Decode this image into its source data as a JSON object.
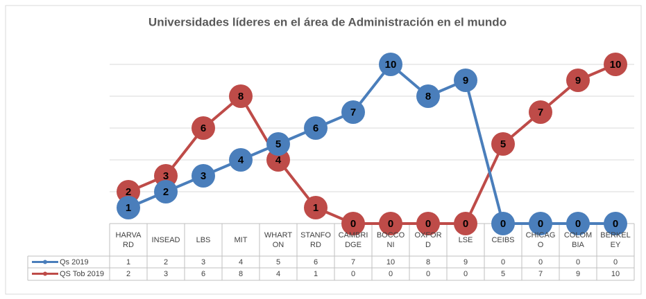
{
  "chart_data": {
    "type": "line",
    "title": "Universidades líderes en el área de Administración en el mundo",
    "categories": [
      "HARVARD",
      "INSEAD",
      "LBS",
      "MIT",
      "WHARTON",
      "STANFORD",
      "CAMBRIDGE",
      "BOCCONI",
      "OXFORD",
      "LSE",
      "CEIBS",
      "CHICAGO",
      "COLOMBIA",
      "BERKELEY"
    ],
    "series": [
      {
        "name": "QS Tob 2019",
        "color": "#be4b48",
        "values": [
          2,
          3,
          6,
          8,
          4,
          1,
          0,
          0,
          0,
          0,
          5,
          7,
          9,
          10
        ]
      },
      {
        "name": "Qs 2019",
        "color": "#4a7ebb",
        "values": [
          1,
          2,
          3,
          4,
          5,
          6,
          7,
          10,
          8,
          9,
          0,
          0,
          0,
          0
        ]
      }
    ],
    "ylim": [
      0,
      10
    ],
    "yticks": [
      0,
      2,
      4,
      6,
      8,
      10
    ],
    "grid": true
  }
}
